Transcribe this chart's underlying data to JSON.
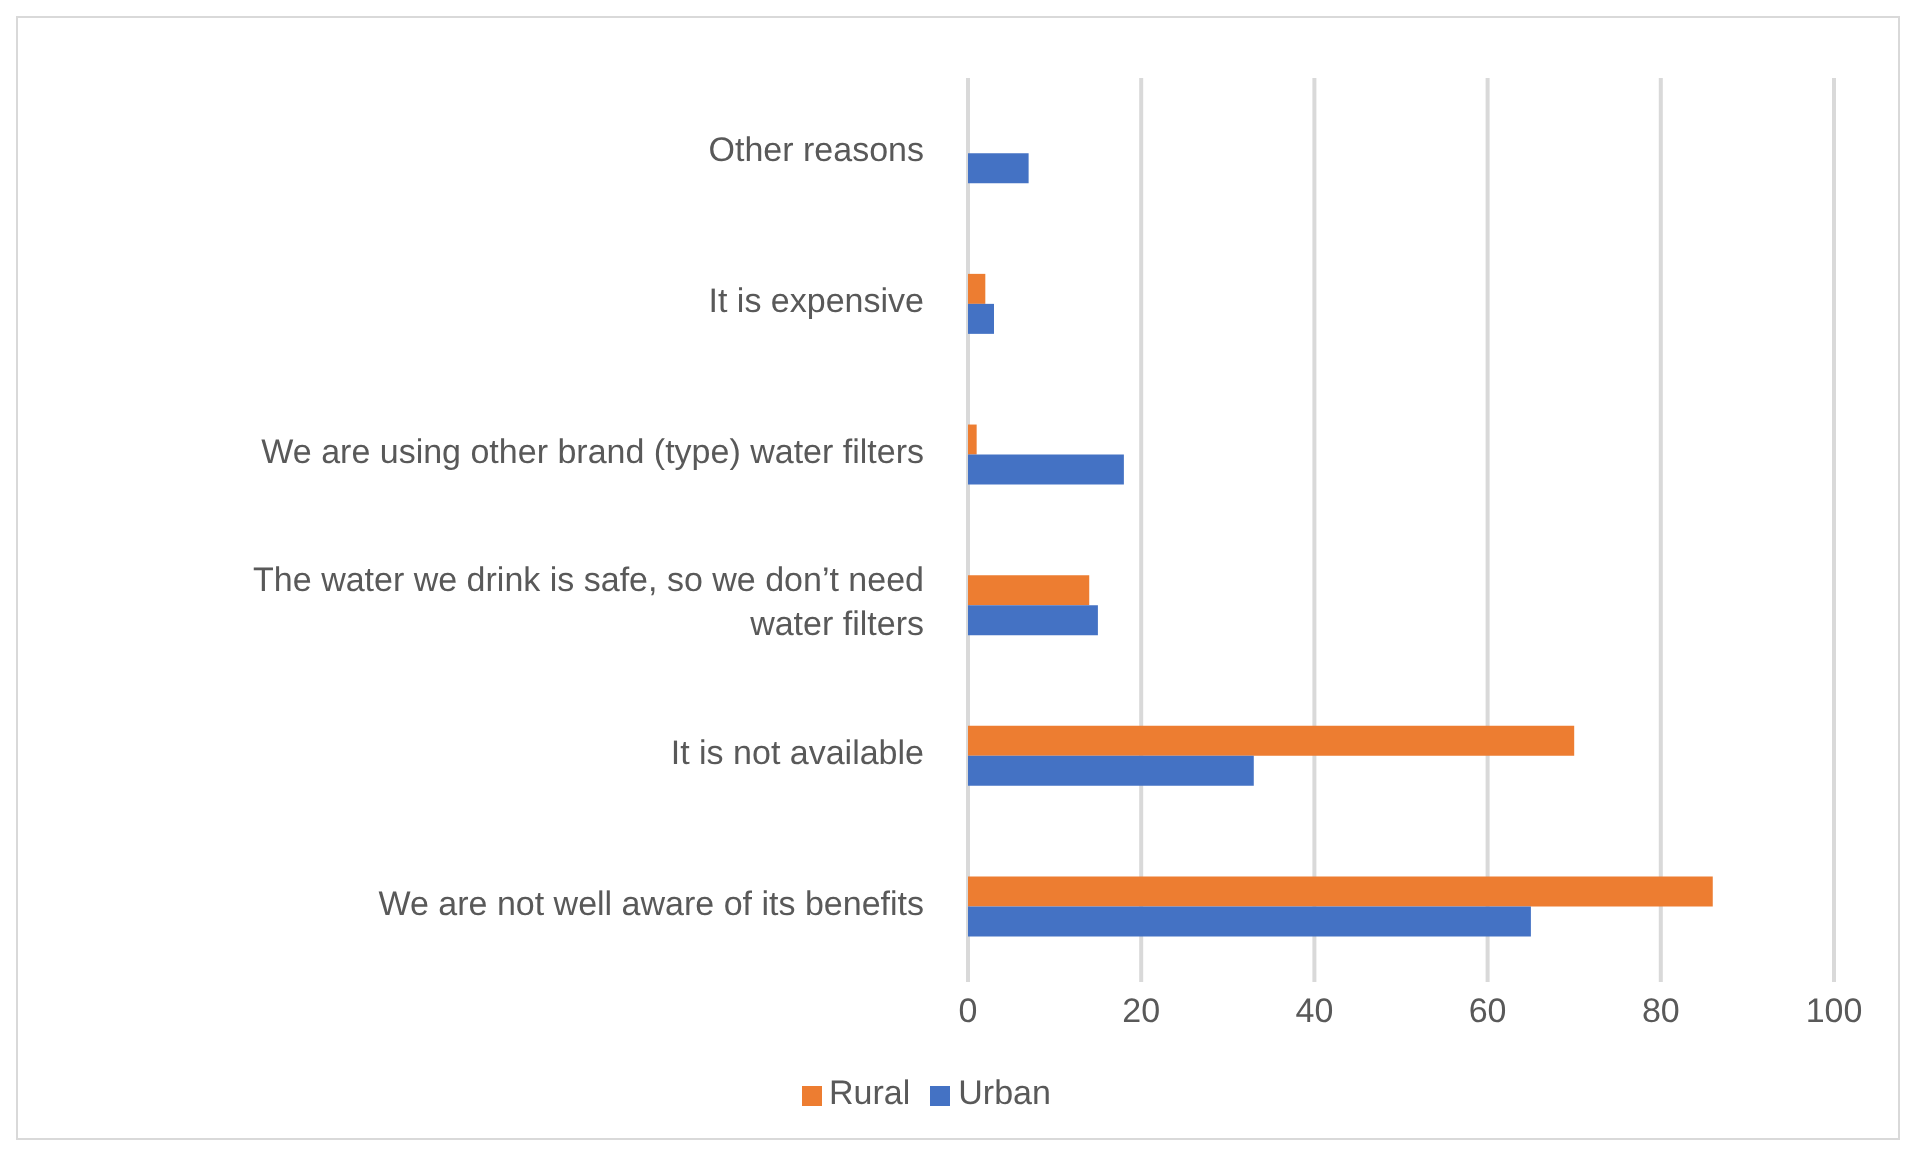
{
  "chart_data": {
    "type": "bar",
    "orientation": "horizontal",
    "categories": [
      "Other reasons",
      "It is expensive",
      "We are using other brand (type) water filters",
      "The water we drink is safe, so we don’t need water filters",
      "It is not available",
      "We are not well aware of its benefits"
    ],
    "series": [
      {
        "name": "Rural",
        "color": "#ed7d31",
        "values": [
          0,
          2,
          1,
          14,
          70,
          86
        ]
      },
      {
        "name": "Urban",
        "color": "#4472c4",
        "values": [
          7,
          3,
          18,
          15,
          33,
          65
        ]
      }
    ],
    "xlim": [
      0,
      100
    ],
    "xticks": [
      0,
      20,
      40,
      60,
      80,
      100
    ],
    "grid": "x",
    "legend": "bottom"
  }
}
